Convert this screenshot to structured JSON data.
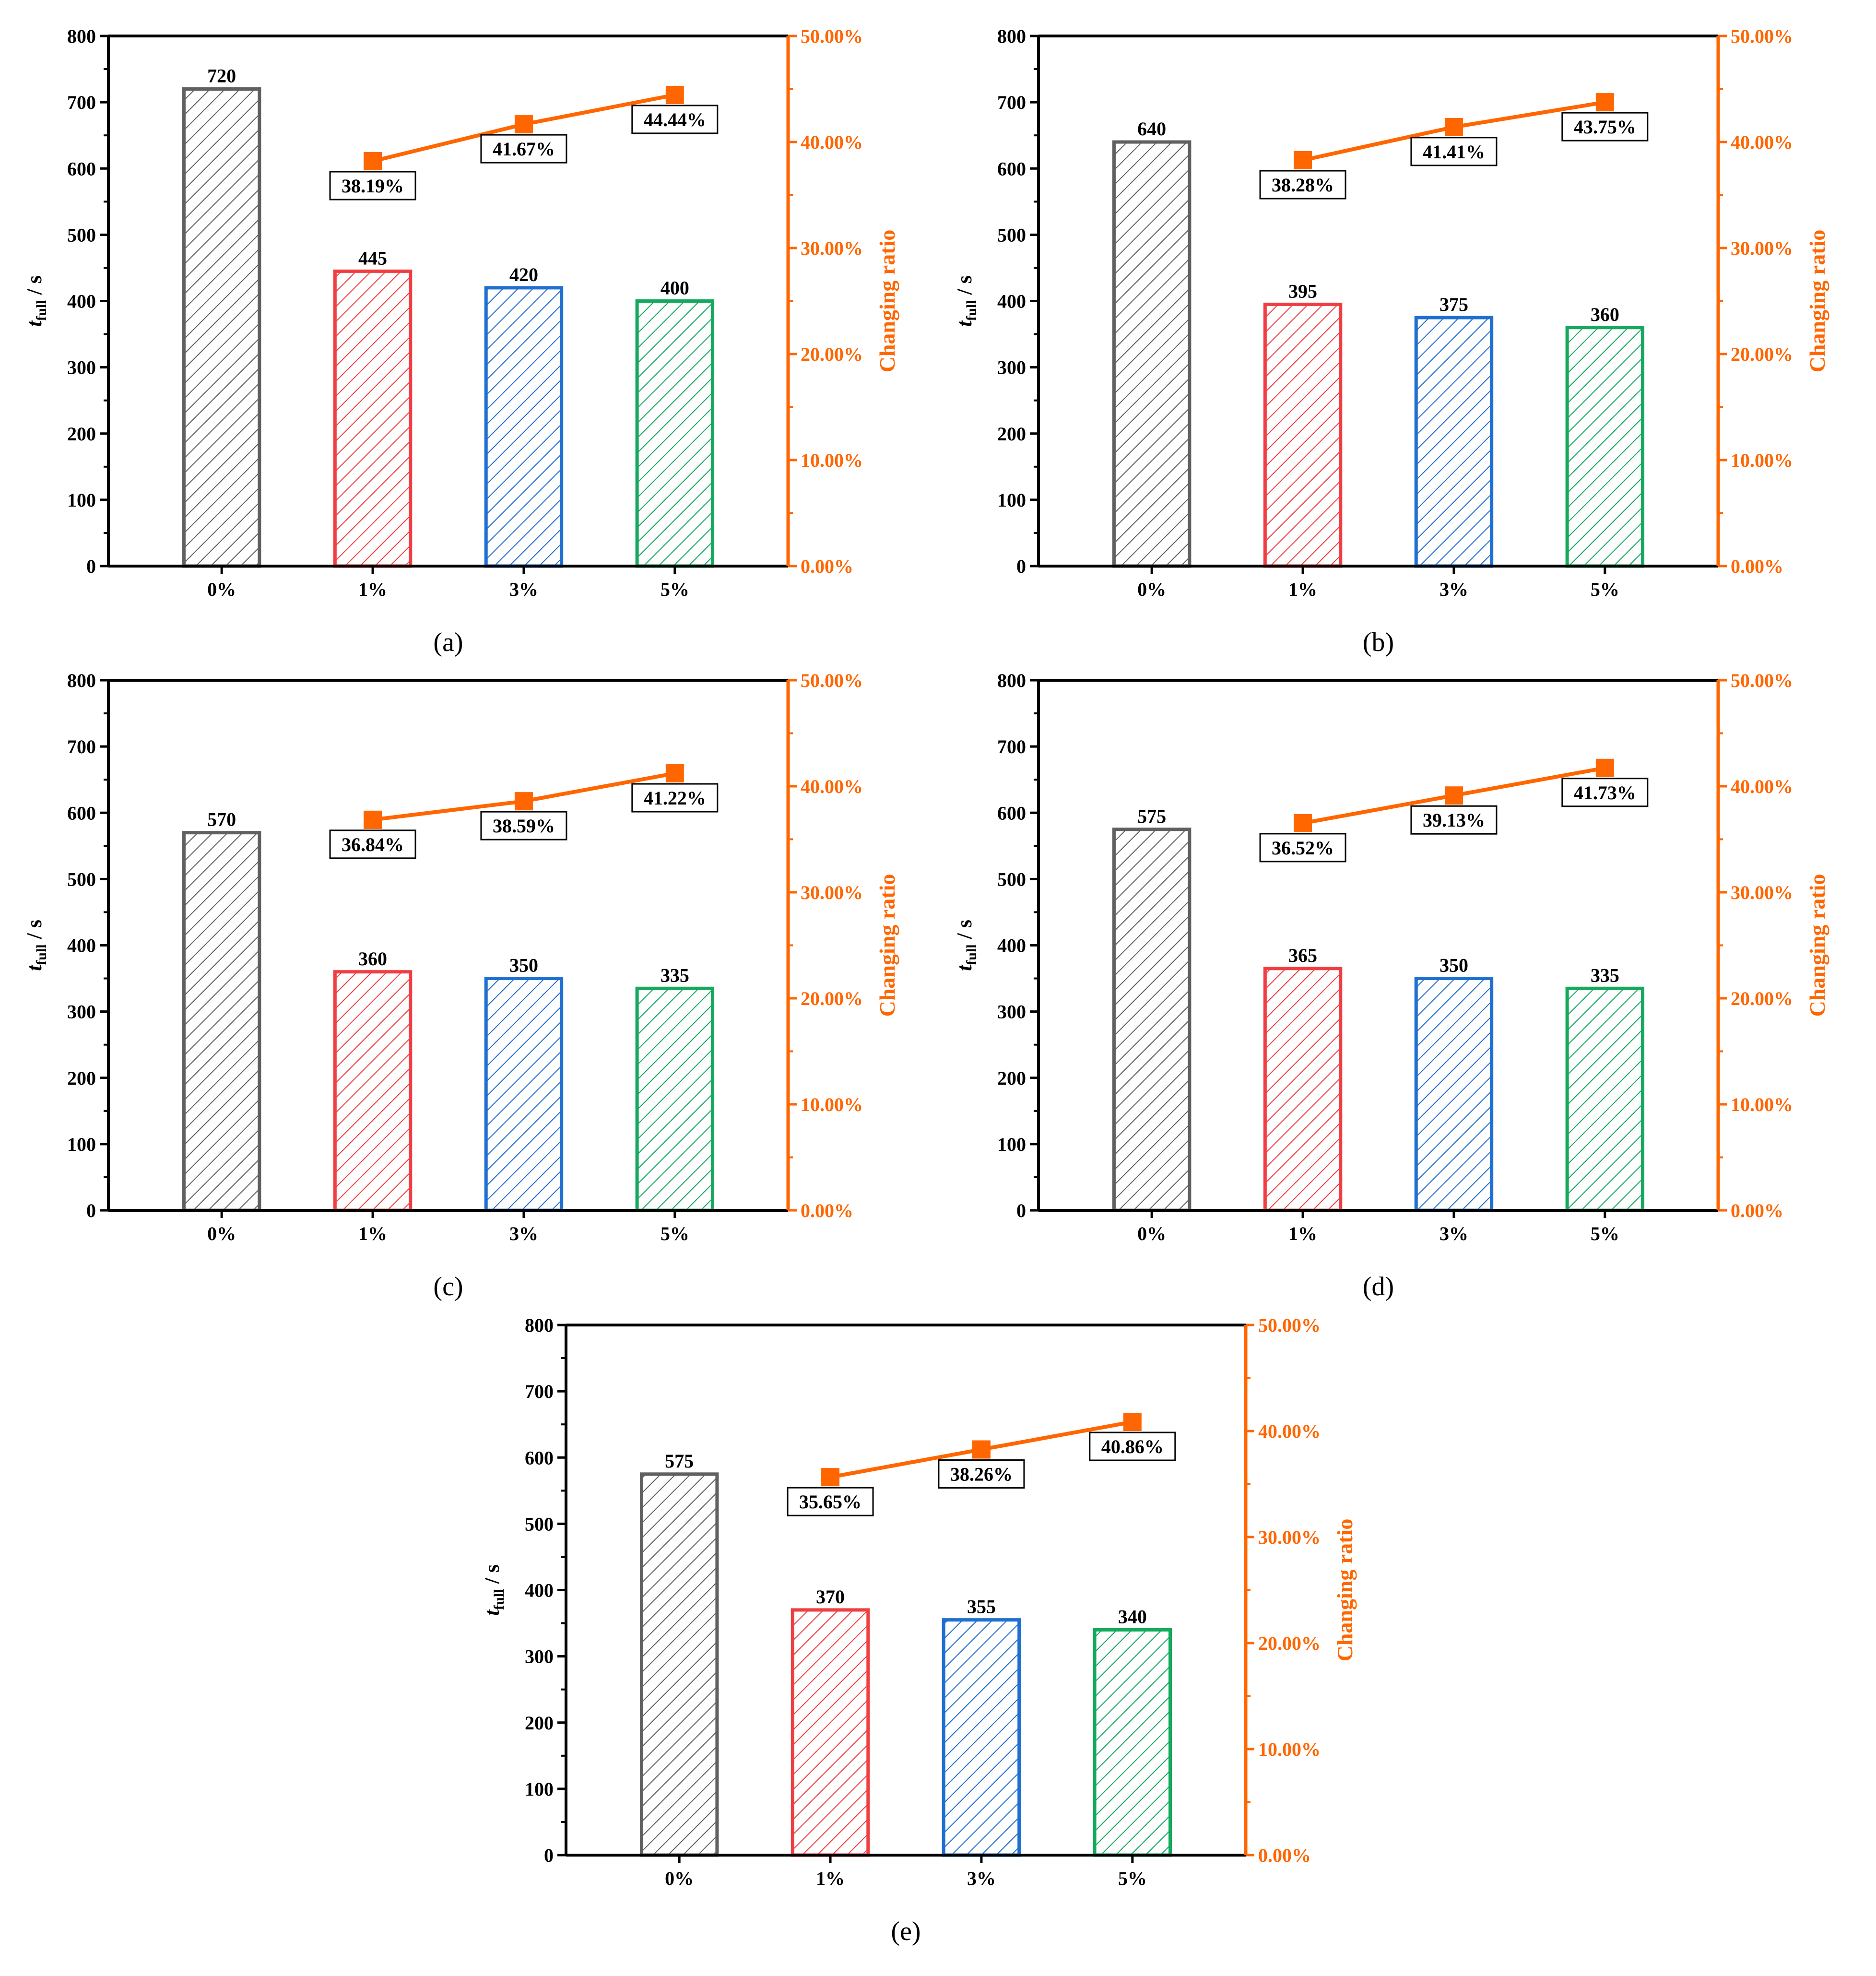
{
  "colors": {
    "axis": "#000000",
    "line": "#ff6600",
    "right_axis": "#ff6600",
    "bars": [
      "#606060",
      "#ef3e42",
      "#1f6fd1",
      "#14a95d"
    ]
  },
  "chart_data": [
    {
      "panel_label": "(a)",
      "type": "bar",
      "categories": [
        "0%",
        "1%",
        "3%",
        "5%"
      ],
      "values": [
        720,
        445,
        420,
        400
      ],
      "value_labels": [
        "720",
        "445",
        "420",
        "400"
      ],
      "ylabel_main": "t",
      "ylabel_sub": "full",
      "ylabel_unit": " / s",
      "ylim": [
        0,
        800
      ],
      "yticks": [
        "0",
        "100",
        "200",
        "300",
        "400",
        "500",
        "600",
        "700",
        "800"
      ],
      "y2label": "Changing ratio",
      "y2lim": [
        0,
        50
      ],
      "y2ticks": [
        "0.00%",
        "10.00%",
        "20.00%",
        "30.00%",
        "40.00%",
        "50.00%"
      ],
      "ratio_categories": [
        "1%",
        "3%",
        "5%"
      ],
      "ratios": [
        38.19,
        41.67,
        44.44
      ],
      "ratio_labels": [
        "38.19%",
        "41.67%",
        "44.44%"
      ]
    },
    {
      "panel_label": "(b)",
      "type": "bar",
      "categories": [
        "0%",
        "1%",
        "3%",
        "5%"
      ],
      "values": [
        640,
        395,
        375,
        360
      ],
      "value_labels": [
        "640",
        "395",
        "375",
        "360"
      ],
      "ylabel_main": "t",
      "ylabel_sub": "full",
      "ylabel_unit": " / s",
      "ylim": [
        0,
        800
      ],
      "yticks": [
        "0",
        "100",
        "200",
        "300",
        "400",
        "500",
        "600",
        "700",
        "800"
      ],
      "y2label": "Changing ratio",
      "y2lim": [
        0,
        50
      ],
      "y2ticks": [
        "0.00%",
        "10.00%",
        "20.00%",
        "30.00%",
        "40.00%",
        "50.00%"
      ],
      "ratio_categories": [
        "1%",
        "3%",
        "5%"
      ],
      "ratios": [
        38.28,
        41.41,
        43.75
      ],
      "ratio_labels": [
        "38.28%",
        "41.41%",
        "43.75%"
      ]
    },
    {
      "panel_label": "(c)",
      "type": "bar",
      "categories": [
        "0%",
        "1%",
        "3%",
        "5%"
      ],
      "values": [
        570,
        360,
        350,
        335
      ],
      "value_labels": [
        "570",
        "360",
        "350",
        "335"
      ],
      "ylabel_main": "t",
      "ylabel_sub": "full",
      "ylabel_unit": " / s",
      "ylim": [
        0,
        800
      ],
      "yticks": [
        "0",
        "100",
        "200",
        "300",
        "400",
        "500",
        "600",
        "700",
        "800"
      ],
      "y2label": "Changing ratio",
      "y2lim": [
        0,
        50
      ],
      "y2ticks": [
        "0.00%",
        "10.00%",
        "20.00%",
        "30.00%",
        "40.00%",
        "50.00%"
      ],
      "ratio_categories": [
        "1%",
        "3%",
        "5%"
      ],
      "ratios": [
        36.84,
        38.59,
        41.22
      ],
      "ratio_labels": [
        "36.84%",
        "38.59%",
        "41.22%"
      ]
    },
    {
      "panel_label": "(d)",
      "type": "bar",
      "categories": [
        "0%",
        "1%",
        "3%",
        "5%"
      ],
      "values": [
        575,
        365,
        350,
        335
      ],
      "value_labels": [
        "575",
        "365",
        "350",
        "335"
      ],
      "ylabel_main": "t",
      "ylabel_sub": "full",
      "ylabel_unit": " / s",
      "ylim": [
        0,
        800
      ],
      "yticks": [
        "0",
        "100",
        "200",
        "300",
        "400",
        "500",
        "600",
        "700",
        "800"
      ],
      "y2label": "Changing ratio",
      "y2lim": [
        0,
        50
      ],
      "y2ticks": [
        "0.00%",
        "10.00%",
        "20.00%",
        "30.00%",
        "40.00%",
        "50.00%"
      ],
      "ratio_categories": [
        "1%",
        "3%",
        "5%"
      ],
      "ratios": [
        36.52,
        39.13,
        41.73
      ],
      "ratio_labels": [
        "36.52%",
        "39.13%",
        "41.73%"
      ]
    },
    {
      "panel_label": "(e)",
      "type": "bar",
      "categories": [
        "0%",
        "1%",
        "3%",
        "5%"
      ],
      "values": [
        575,
        370,
        355,
        340
      ],
      "value_labels": [
        "575",
        "370",
        "355",
        "340"
      ],
      "ylabel_main": "t",
      "ylabel_sub": "full",
      "ylabel_unit": " / s",
      "ylim": [
        0,
        800
      ],
      "yticks": [
        "0",
        "100",
        "200",
        "300",
        "400",
        "500",
        "600",
        "700",
        "800"
      ],
      "y2label": "Changing ratio",
      "y2lim": [
        0,
        50
      ],
      "y2ticks": [
        "0.00%",
        "10.00%",
        "20.00%",
        "30.00%",
        "40.00%",
        "50.00%"
      ],
      "ratio_categories": [
        "1%",
        "3%",
        "5%"
      ],
      "ratios": [
        35.65,
        38.26,
        40.86
      ],
      "ratio_labels": [
        "35.65%",
        "38.26%",
        "40.86%"
      ]
    }
  ]
}
